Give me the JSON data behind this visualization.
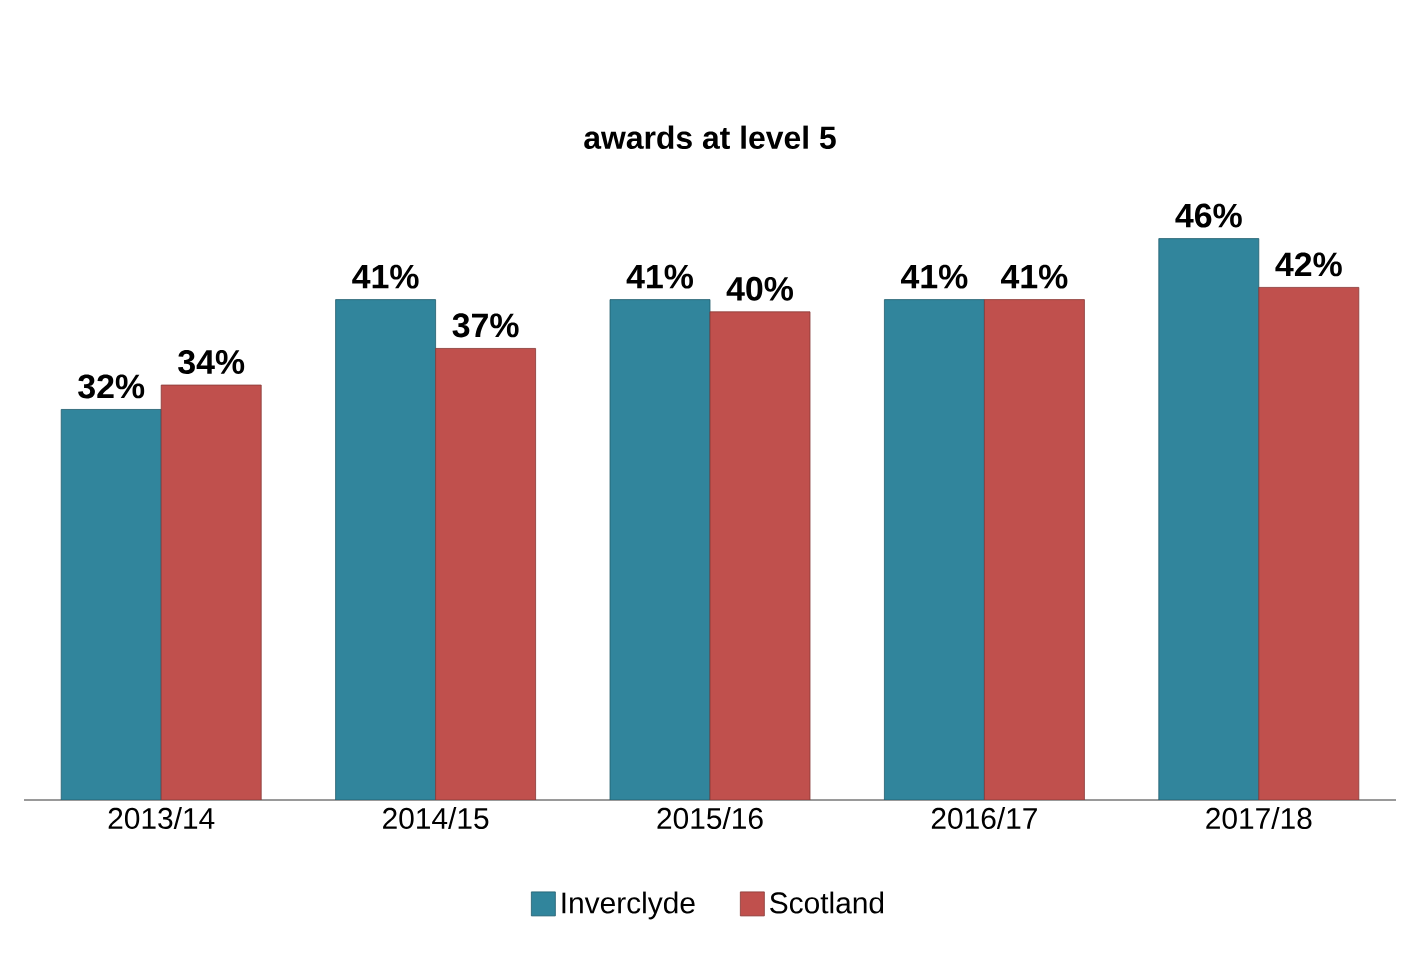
{
  "chart_data": {
    "type": "bar",
    "title": "awards at level 5",
    "categories": [
      "2013/14",
      "2014/15",
      "2015/16",
      "2016/17",
      "2017/18"
    ],
    "series": [
      {
        "name": "Inverclyde",
        "color": "#31859c",
        "values": [
          32,
          41,
          41,
          41,
          46
        ],
        "value_labels": [
          "32%",
          "41%",
          "41%",
          "41%",
          "46%"
        ]
      },
      {
        "name": "Scotland",
        "color": "#c0504d",
        "values": [
          34,
          37,
          40,
          41,
          42
        ],
        "value_labels": [
          "34%",
          "37%",
          "40%",
          "41%",
          "42%"
        ]
      }
    ],
    "legend": "bottom"
  }
}
